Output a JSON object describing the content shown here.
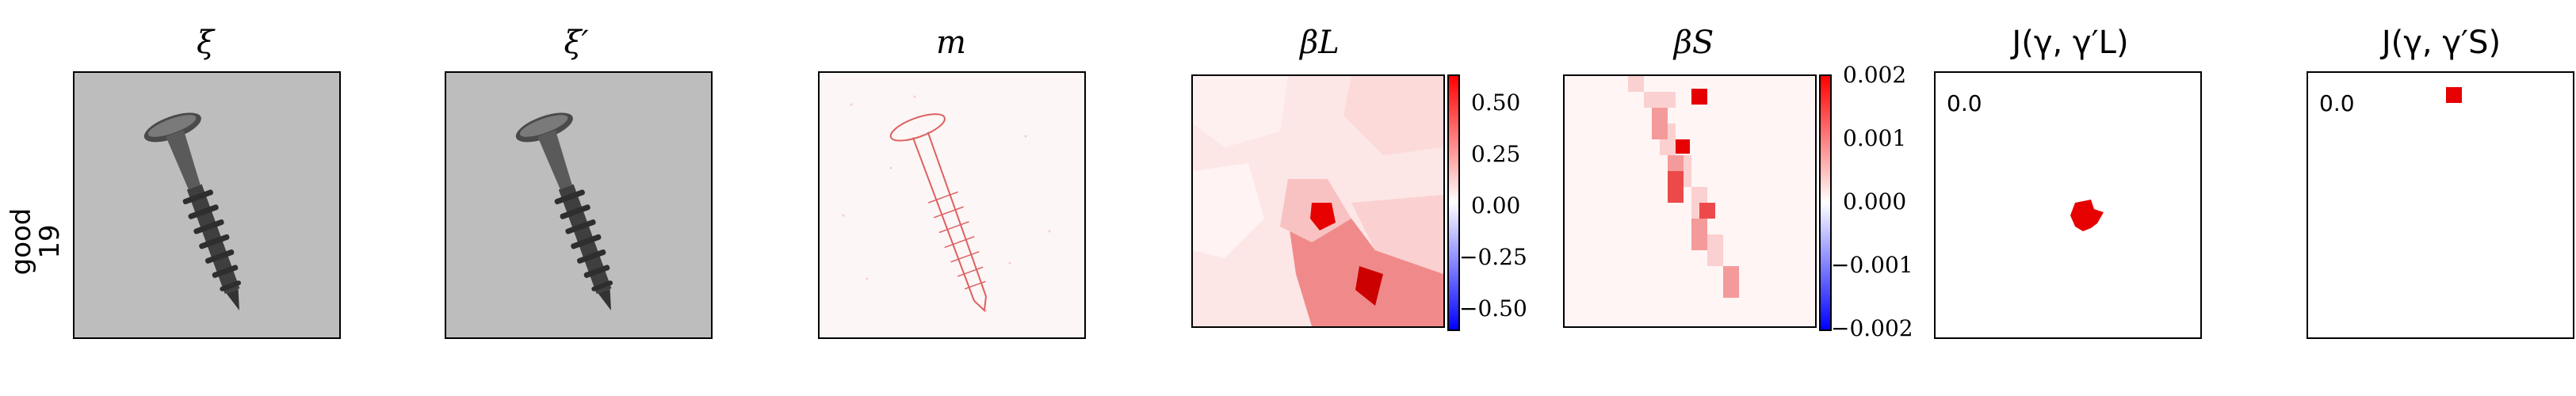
{
  "row_label": {
    "line1": "good",
    "line2": "19"
  },
  "panels": {
    "xi": {
      "title": "ξ"
    },
    "xi_prime": {
      "title": "ξ′"
    },
    "m": {
      "title": "m"
    },
    "beta_L": {
      "title": "βL",
      "cbar_ticks": [
        "0.50",
        "0.25",
        "0.00",
        "−0.25",
        "−0.50"
      ]
    },
    "beta_S": {
      "title": "βS",
      "cbar_ticks": [
        "0.002",
        "0.001",
        "0.000",
        "−0.001",
        "−0.002"
      ]
    },
    "j_L": {
      "title": "J(γ, γ′L)",
      "value": "0.0"
    },
    "j_S": {
      "title": "J(γ, γ′S)",
      "value": "0.0"
    }
  },
  "colors": {
    "positive": "#ff0000",
    "negative": "#0000ff",
    "neutral": "#ffffff"
  }
}
